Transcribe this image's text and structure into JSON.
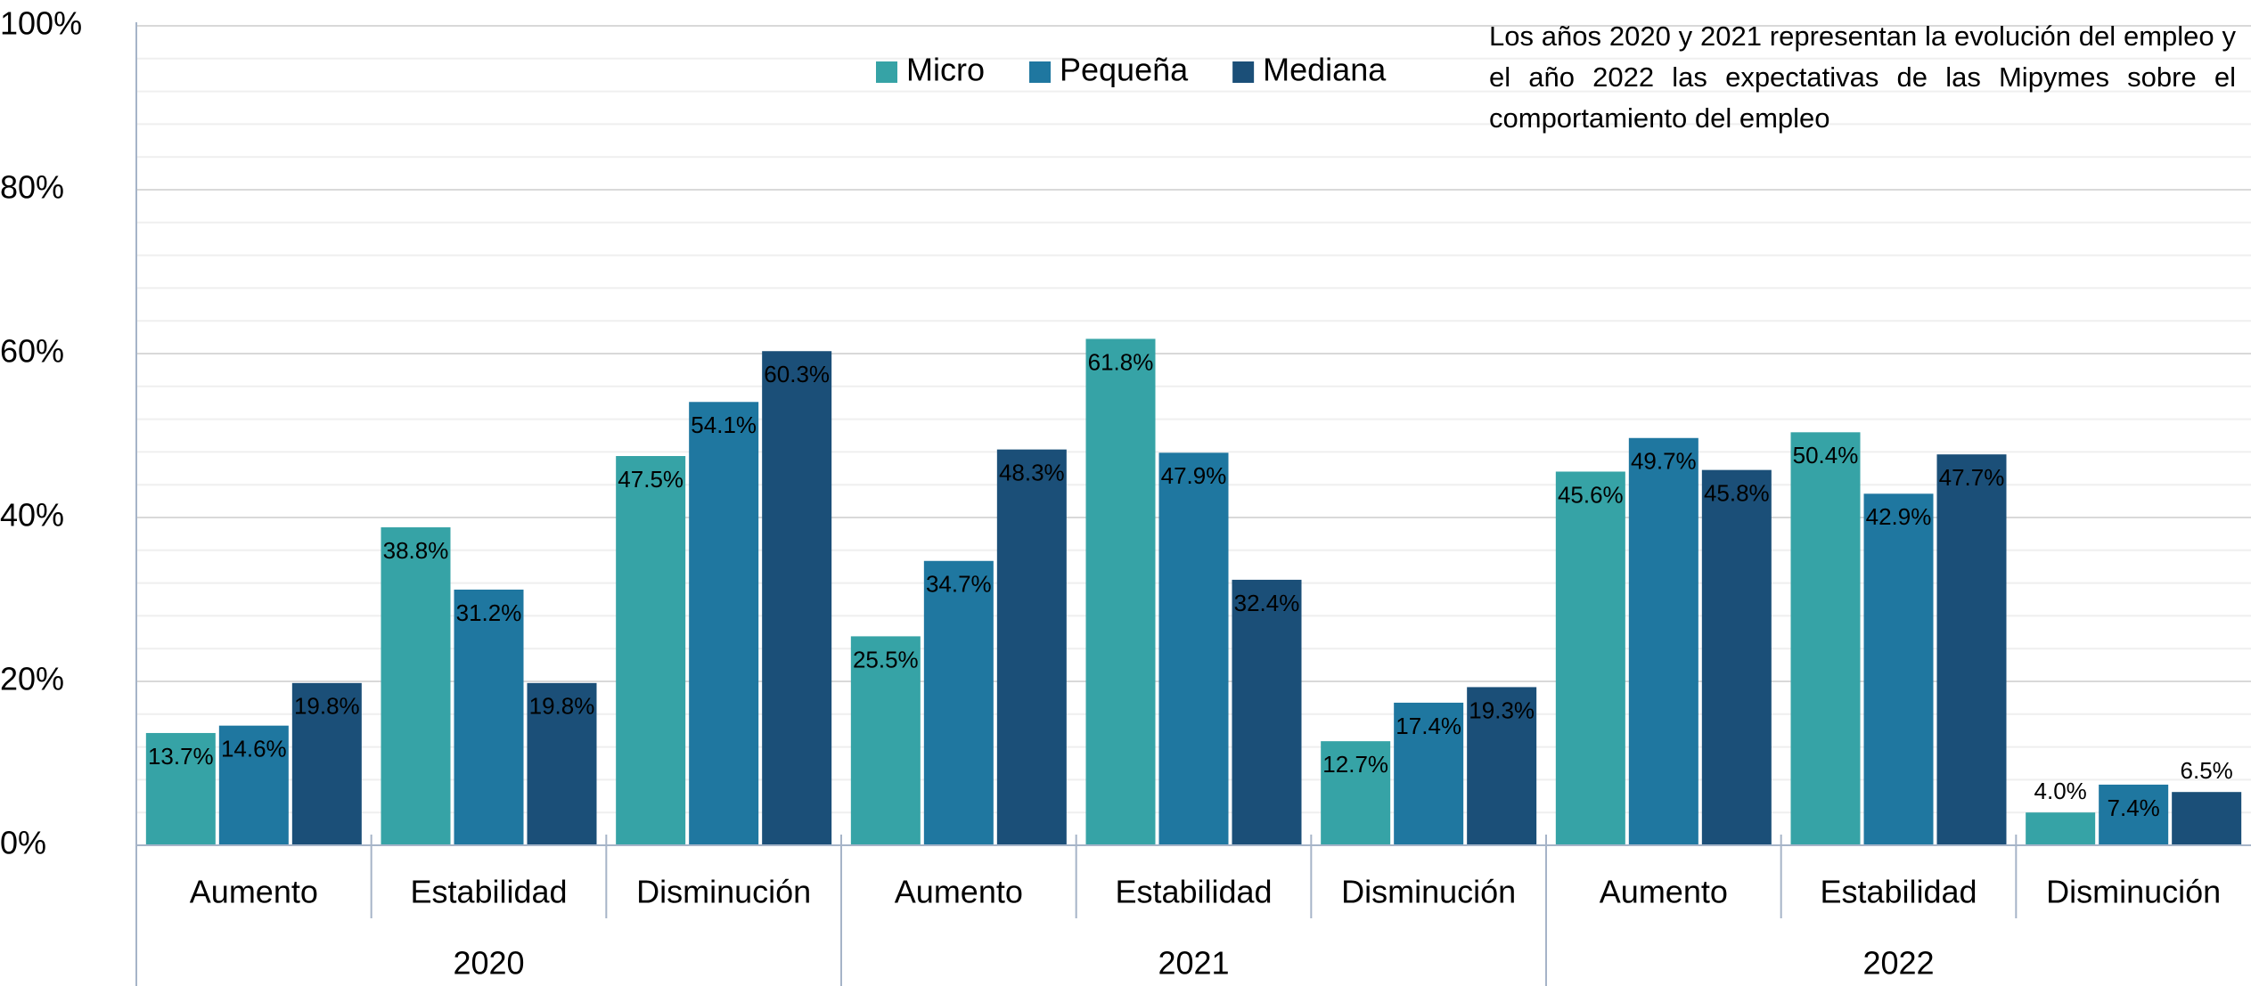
{
  "chart_data": {
    "type": "bar",
    "annotation": "Los años 2020 y 2021 representan la evolución del empleo y el año 2022 las expectativas de las Mipymes sobre el comportamiento del empleo",
    "categories": [
      "Aumento",
      "Estabilidad",
      "Disminución",
      "Aumento",
      "Estabilidad",
      "Disminución",
      "Aumento",
      "Estabilidad",
      "Disminución"
    ],
    "groups": [
      "2020",
      "2021",
      "2022"
    ],
    "series": [
      {
        "name": "Micro",
        "color": "#36a3a6",
        "values": [
          13.7,
          38.8,
          47.5,
          25.5,
          61.8,
          12.7,
          45.6,
          50.4,
          4.0
        ],
        "value_labels": [
          "13.7%",
          "38.8%",
          "47.5%",
          "25.5%",
          "61.8%",
          "12.7%",
          "45.6%",
          "50.4%",
          "4.0%"
        ]
      },
      {
        "name": "Pequeña",
        "color": "#1f77a0",
        "values": [
          14.6,
          31.2,
          54.1,
          34.7,
          47.9,
          17.4,
          49.7,
          42.9,
          7.4
        ],
        "value_labels": [
          "14.6%",
          "31.2%",
          "54.1%",
          "34.7%",
          "47.9%",
          "17.4%",
          "49.7%",
          "42.9%",
          "7.4%"
        ]
      },
      {
        "name": "Mediana",
        "color": "#1b4f78",
        "values": [
          19.8,
          19.8,
          60.3,
          48.3,
          32.4,
          19.3,
          45.8,
          47.7,
          6.5
        ],
        "value_labels": [
          "19.8%",
          "19.8%",
          "60.3%",
          "48.3%",
          "32.4%",
          "19.3%",
          "45.8%",
          "47.7%",
          "6.5%"
        ]
      }
    ],
    "ylim": [
      0,
      100
    ],
    "yticks": [
      {
        "value": 0,
        "label": "0%"
      },
      {
        "value": 20,
        "label": "20%"
      },
      {
        "value": 40,
        "label": "40%"
      },
      {
        "value": 60,
        "label": "60%"
      },
      {
        "value": 80,
        "label": "80%"
      },
      {
        "value": 100,
        "label": "100%"
      }
    ],
    "yminorticks": [
      4,
      8,
      12,
      16,
      24,
      28,
      32,
      36,
      44,
      48,
      52,
      56,
      64,
      68,
      72,
      76,
      84,
      88,
      92,
      96
    ],
    "grid": true,
    "legend": "top"
  }
}
